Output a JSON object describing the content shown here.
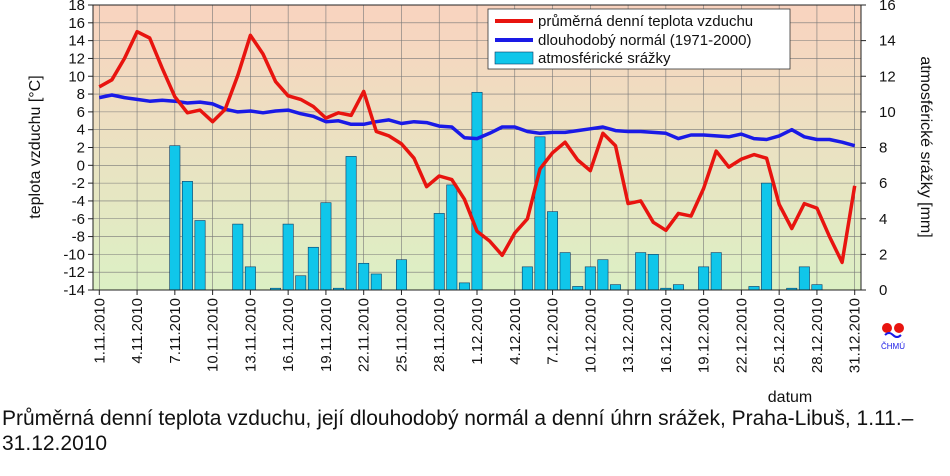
{
  "caption": "Průměrná denní teplota vzduchu, její dlouhodobý normál a denní úhrn srážek, Praha-Libuš, 1.11.–31.12.2010",
  "logo_text": "ČHMÚ",
  "colors": {
    "temp": "#e8140f",
    "normal": "#1a1ae6",
    "precip": "#10c6ea",
    "bar_edge": "#0a3a66",
    "bg_top": "#f9d3bf",
    "bg_bottom": "#dcf0c4",
    "grid": "#777777"
  },
  "chart_data": {
    "type": "line",
    "xlabel": "datum",
    "ylabel": "teplota vzduchu [°C]",
    "y2label": "atmosférické srážky [mm]",
    "ylim": [
      -14,
      18
    ],
    "y2lim": [
      0,
      16
    ],
    "yticks": [
      "-14",
      "-12",
      "-10",
      "-8",
      "-6",
      "-4",
      "-2",
      "0",
      "2",
      "4",
      "6",
      "8",
      "10",
      "12",
      "14",
      "16",
      "18"
    ],
    "y2ticks": [
      "0",
      "2",
      "4",
      "6",
      "8",
      "10",
      "12",
      "14",
      "16"
    ],
    "grid": true,
    "legend_position": "top-right",
    "x": [
      "1.11.2010",
      "2.11.2010",
      "3.11.2010",
      "4.11.2010",
      "5.11.2010",
      "6.11.2010",
      "7.11.2010",
      "8.11.2010",
      "9.11.2010",
      "10.11.2010",
      "11.11.2010",
      "12.11.2010",
      "13.11.2010",
      "14.11.2010",
      "15.11.2010",
      "16.11.2010",
      "17.11.2010",
      "18.11.2010",
      "19.11.2010",
      "20.11.2010",
      "21.11.2010",
      "22.11.2010",
      "23.11.2010",
      "24.11.2010",
      "25.11.2010",
      "26.11.2010",
      "27.11.2010",
      "28.11.2010",
      "29.11.2010",
      "30.11.2010",
      "1.12.2010",
      "2.12.2010",
      "3.12.2010",
      "4.12.2010",
      "5.12.2010",
      "6.12.2010",
      "7.12.2010",
      "8.12.2010",
      "9.12.2010",
      "10.12.2010",
      "11.12.2010",
      "12.12.2010",
      "13.12.2010",
      "14.12.2010",
      "15.12.2010",
      "16.12.2010",
      "17.12.2010",
      "18.12.2010",
      "19.12.2010",
      "20.12.2010",
      "21.12.2010",
      "22.12.2010",
      "23.12.2010",
      "24.12.2010",
      "25.12.2010",
      "26.12.2010",
      "27.12.2010",
      "28.12.2010",
      "29.12.2010",
      "30.12.2010",
      "31.12.2010"
    ],
    "xtick_labels": [
      "1.11.2010",
      "4.11.2010",
      "7.11.2010",
      "10.11.2010",
      "13.11.2010",
      "16.11.2010",
      "19.11.2010",
      "22.11.2010",
      "25.11.2010",
      "28.11.2010",
      "1.12.2010",
      "4.12.2010",
      "7.12.2010",
      "10.12.2010",
      "13.12.2010",
      "16.12.2010",
      "19.12.2010",
      "22.12.2010",
      "25.12.2010",
      "28.12.2010",
      "31.12.2010"
    ],
    "series": [
      {
        "name": "průměrná denní teplota vzduchu",
        "axis": "left",
        "kind": "line",
        "values": [
          8.8,
          9.6,
          12.0,
          15.0,
          14.3,
          10.9,
          7.7,
          5.9,
          6.2,
          4.9,
          6.3,
          10.1,
          14.6,
          12.5,
          9.4,
          7.8,
          7.4,
          6.6,
          5.3,
          5.9,
          5.6,
          8.3,
          3.8,
          3.3,
          2.4,
          0.8,
          -2.4,
          -1.2,
          -1.6,
          -3.8,
          -7.4,
          -8.5,
          -10.1,
          -7.6,
          -6.0,
          -0.4,
          1.4,
          2.6,
          0.6,
          -0.6,
          3.6,
          2.2,
          -4.3,
          -4.0,
          -6.4,
          -7.3,
          -5.4,
          -5.7,
          -2.6,
          1.6,
          -0.2,
          0.7,
          1.2,
          0.8,
          -4.4,
          -7.1,
          -4.3,
          -4.8,
          -8.0,
          -10.9,
          -2.3
        ]
      },
      {
        "name": "dlouhodobý normál (1971-2000)",
        "axis": "left",
        "kind": "line",
        "values": [
          7.6,
          7.9,
          7.6,
          7.4,
          7.2,
          7.3,
          7.2,
          7.0,
          7.1,
          6.9,
          6.3,
          6.0,
          6.1,
          5.9,
          6.1,
          6.2,
          5.8,
          5.5,
          4.9,
          5.0,
          4.6,
          4.6,
          4.9,
          5.1,
          4.7,
          4.9,
          4.8,
          4.4,
          4.3,
          3.1,
          3.0,
          3.6,
          4.3,
          4.3,
          3.8,
          3.6,
          3.7,
          3.7,
          3.9,
          4.1,
          4.3,
          3.9,
          3.8,
          3.8,
          3.7,
          3.6,
          3.0,
          3.4,
          3.4,
          3.3,
          3.2,
          3.5,
          3.0,
          2.9,
          3.3,
          4.0,
          3.2,
          2.9,
          2.9,
          2.6,
          2.2
        ]
      },
      {
        "name": "atmosférické srážky",
        "axis": "right",
        "kind": "bar",
        "values": [
          0,
          0,
          0,
          0,
          0,
          0,
          8.1,
          6.1,
          3.9,
          0,
          0,
          3.7,
          1.3,
          0,
          0.1,
          3.7,
          0.8,
          2.4,
          4.9,
          0.1,
          7.5,
          1.5,
          0.9,
          0,
          1.7,
          0,
          0,
          4.3,
          5.9,
          0.4,
          11.1,
          0,
          0,
          0,
          1.3,
          8.6,
          4.4,
          2.1,
          0.2,
          1.3,
          1.7,
          0.3,
          0,
          2.1,
          2.0,
          0.1,
          0.3,
          0,
          1.3,
          2.1,
          0,
          0,
          0.2,
          6.0,
          0,
          0.1,
          1.3,
          0.3,
          0,
          0,
          0
        ]
      }
    ]
  }
}
